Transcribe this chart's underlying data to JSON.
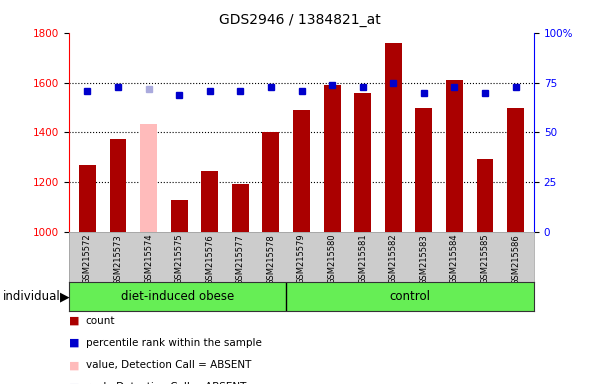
{
  "title": "GDS2946 / 1384821_at",
  "samples": [
    "GSM215572",
    "GSM215573",
    "GSM215574",
    "GSM215575",
    "GSM215576",
    "GSM215577",
    "GSM215578",
    "GSM215579",
    "GSM215580",
    "GSM215581",
    "GSM215582",
    "GSM215583",
    "GSM215584",
    "GSM215585",
    "GSM215586"
  ],
  "counts": [
    1270,
    1375,
    1435,
    1130,
    1245,
    1195,
    1400,
    1490,
    1590,
    1560,
    1760,
    1500,
    1610,
    1295,
    1500
  ],
  "ranks": [
    71,
    73,
    72,
    69,
    71,
    71,
    73,
    71,
    74,
    73,
    75,
    70,
    73,
    70,
    73
  ],
  "absent": [
    false,
    false,
    true,
    false,
    false,
    false,
    false,
    false,
    false,
    false,
    false,
    false,
    false,
    false,
    false
  ],
  "groups": [
    "diet-induced obese",
    "diet-induced obese",
    "diet-induced obese",
    "diet-induced obese",
    "diet-induced obese",
    "diet-induced obese",
    "diet-induced obese",
    "control",
    "control",
    "control",
    "control",
    "control",
    "control",
    "control",
    "control"
  ],
  "bar_color_normal": "#aa0000",
  "bar_color_absent": "#ffbbbb",
  "rank_color_normal": "#0000cc",
  "rank_color_absent": "#aaaadd",
  "ylim_left": [
    1000,
    1800
  ],
  "ylim_right": [
    0,
    100
  ],
  "yticks_left": [
    1000,
    1200,
    1400,
    1600,
    1800
  ],
  "yticks_right": [
    0,
    25,
    50,
    75,
    100
  ],
  "grid_lines": [
    1200,
    1400,
    1600
  ],
  "plot_bg": "#ffffff",
  "names_bg": "#cccccc",
  "group_bg": "#66ee55",
  "legend_items": [
    {
      "label": "count",
      "color": "#aa0000"
    },
    {
      "label": "percentile rank within the sample",
      "color": "#0000cc"
    },
    {
      "label": "value, Detection Call = ABSENT",
      "color": "#ffbbbb"
    },
    {
      "label": "rank, Detection Call = ABSENT",
      "color": "#aaaadd"
    }
  ]
}
